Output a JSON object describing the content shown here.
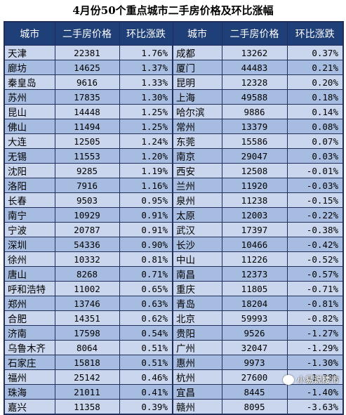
{
  "title": "4月份50个重点城市二手房价格及环比涨幅",
  "headers": [
    "城市",
    "二手房价格",
    "环比涨跌",
    "城市",
    "二手房价格",
    "环比涨跌"
  ],
  "rows": [
    {
      "city1": "天津",
      "price1": "22381",
      "chg1": "1.76%",
      "city2": "成都",
      "price2": "13262",
      "chg2": "0.37%"
    },
    {
      "city1": "廊坊",
      "price1": "14625",
      "chg1": "1.37%",
      "city2": "厦门",
      "price2": "44483",
      "chg2": "0.21%"
    },
    {
      "city1": "秦皇岛",
      "price1": "9616",
      "chg1": "1.33%",
      "city2": "昆明",
      "price2": "12328",
      "chg2": "0.20%"
    },
    {
      "city1": "苏州",
      "price1": "17835",
      "chg1": "1.30%",
      "city2": "上海",
      "price2": "49588",
      "chg2": "0.18%"
    },
    {
      "city1": "昆山",
      "price1": "14448",
      "chg1": "1.25%",
      "city2": "哈尔滨",
      "price2": "9886",
      "chg2": "0.14%"
    },
    {
      "city1": "佛山",
      "price1": "11494",
      "chg1": "1.25%",
      "city2": "常州",
      "price2": "13379",
      "chg2": "0.08%"
    },
    {
      "city1": "大连",
      "price1": "12505",
      "chg1": "1.24%",
      "city2": "东莞",
      "price2": "15586",
      "chg2": "0.07%"
    },
    {
      "city1": "无锡",
      "price1": "11553",
      "chg1": "1.20%",
      "city2": "南京",
      "price2": "29047",
      "chg2": "0.03%"
    },
    {
      "city1": "沈阳",
      "price1": "9285",
      "chg1": "1.19%",
      "city2": "西安",
      "price2": "12508",
      "chg2": "-0.01%"
    },
    {
      "city1": "洛阳",
      "price1": "7916",
      "chg1": "1.16%",
      "city2": "兰州",
      "price2": "11920",
      "chg2": "-0.03%"
    },
    {
      "city1": "长春",
      "price1": "9503",
      "chg1": "0.95%",
      "city2": "泉州",
      "price2": "11238",
      "chg2": "-0.15%"
    },
    {
      "city1": "南宁",
      "price1": "10929",
      "chg1": "0.91%",
      "city2": "太原",
      "price2": "12003",
      "chg2": "-0.22%"
    },
    {
      "city1": "宁波",
      "price1": "20787",
      "chg1": "0.91%",
      "city2": "武汉",
      "price2": "17397",
      "chg2": "-0.38%"
    },
    {
      "city1": "深圳",
      "price1": "54336",
      "chg1": "0.90%",
      "city2": "长沙",
      "price2": "10466",
      "chg2": "-0.42%"
    },
    {
      "city1": "徐州",
      "price1": "10332",
      "chg1": "0.81%",
      "city2": "中山",
      "price2": "11226",
      "chg2": "-0.52%"
    },
    {
      "city1": "唐山",
      "price1": "8268",
      "chg1": "0.71%",
      "city2": "南昌",
      "price2": "12373",
      "chg2": "-0.57%"
    },
    {
      "city1": "呼和浩特",
      "price1": "11002",
      "chg1": "0.65%",
      "city2": "重庆",
      "price2": "11805",
      "chg2": "-0.71%"
    },
    {
      "city1": "郑州",
      "price1": "13746",
      "chg1": "0.63%",
      "city2": "青岛",
      "price2": "18204",
      "chg2": "-0.81%"
    },
    {
      "city1": "合肥",
      "price1": "14351",
      "chg1": "0.62%",
      "city2": "北京",
      "price2": "59993",
      "chg2": "-0.82%"
    },
    {
      "city1": "济南",
      "price1": "17598",
      "chg1": "0.54%",
      "city2": "贵阳",
      "price2": "9526",
      "chg2": "-1.27%"
    },
    {
      "city1": "乌鲁木齐",
      "price1": "8064",
      "chg1": "0.51%",
      "city2": "广州",
      "price2": "32047",
      "chg2": "-1.29%"
    },
    {
      "city1": "石家庄",
      "price1": "15818",
      "chg1": "0.51%",
      "city2": "惠州",
      "price2": "9973",
      "chg2": "-1.30%"
    },
    {
      "city1": "福州",
      "price1": "25142",
      "chg1": "0.46%",
      "city2": "杭州",
      "price2": "27600",
      "chg2": "-1.38%"
    },
    {
      "city1": "珠海",
      "price1": "21011",
      "chg1": "0.41%",
      "city2": "宜昌",
      "price2": "8445",
      "chg2": "-1.40%"
    },
    {
      "city1": "嘉兴",
      "price1": "11358",
      "chg1": "0.39%",
      "city2": "赣州",
      "price2": "8095",
      "chg2": "-3.63%"
    }
  ],
  "watermark": {
    "text": "小易说楼市",
    "icon": "wechat-icon"
  },
  "colors": {
    "header_bg": "#1f3f78",
    "row_light": "#c9d6ee",
    "row_dark": "#a6bce0",
    "border": "#1f2e5a"
  }
}
